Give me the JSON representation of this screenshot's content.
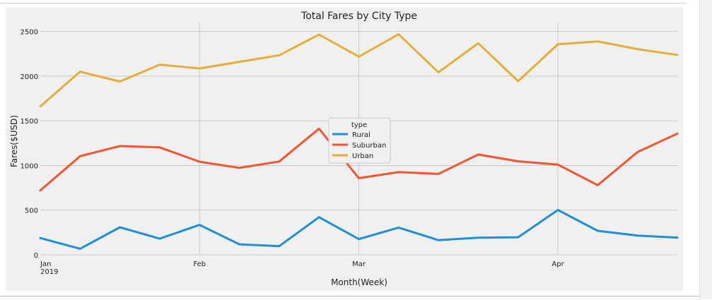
{
  "chart_data": {
    "type": "line",
    "title": "Total Fares by City Type",
    "xlabel": "Month(Week)",
    "ylabel": "Fares($USD)",
    "ylim": [
      0,
      2600
    ],
    "yticks": [
      0,
      500,
      1000,
      1500,
      2000,
      2500
    ],
    "x": [
      "2019-01-06",
      "2019-01-13",
      "2019-01-20",
      "2019-01-27",
      "2019-02-03",
      "2019-02-10",
      "2019-02-17",
      "2019-02-24",
      "2019-03-03",
      "2019-03-10",
      "2019-03-17",
      "2019-03-24",
      "2019-03-31",
      "2019-04-07",
      "2019-04-14",
      "2019-04-21",
      "2019-04-28"
    ],
    "xticks": [
      {
        "label": "Jan",
        "sublabel": "2019",
        "x": "2019-01-06"
      },
      {
        "label": "Feb",
        "sublabel": "",
        "x": "2019-02-03"
      },
      {
        "label": "Mar",
        "sublabel": "",
        "x": "2019-03-03"
      },
      {
        "label": "Apr",
        "sublabel": "",
        "x": "2019-04-07"
      }
    ],
    "grid": true,
    "legend_title": "type",
    "legend_position": "center",
    "series": [
      {
        "name": "Rural",
        "color": "#1f8fd6",
        "values": [
          188,
          68,
          308,
          181,
          335,
          118,
          97,
          421,
          176,
          305,
          164,
          191,
          197,
          502,
          269,
          216,
          193
        ]
      },
      {
        "name": "Suburban",
        "color": "#f4552f",
        "values": [
          721,
          1105,
          1218,
          1203,
          1042,
          974,
          1045,
          1412,
          858,
          926,
          906,
          1123,
          1047,
          1010,
          780,
          1151,
          1357
        ]
      },
      {
        "name": "Urban",
        "color": "#e5ae38",
        "values": [
          1662,
          2051,
          1940,
          2129,
          2086,
          2161,
          2234,
          2466,
          2219,
          2469,
          2044,
          2369,
          1944,
          2358,
          2389,
          2303,
          2238
        ]
      }
    ]
  }
}
